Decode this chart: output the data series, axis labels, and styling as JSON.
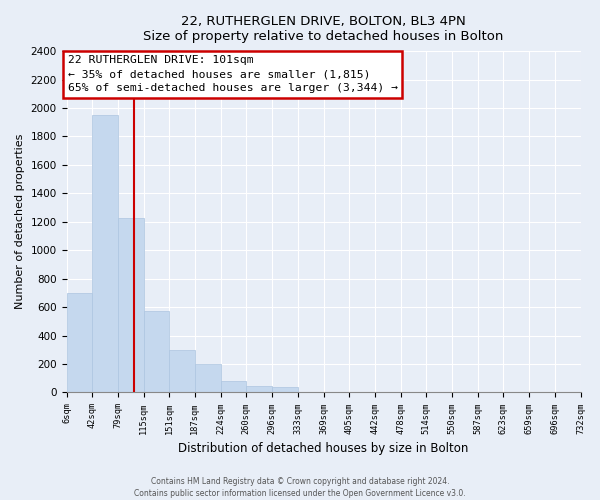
{
  "title": "22, RUTHERGLEN DRIVE, BOLTON, BL3 4PN",
  "subtitle": "Size of property relative to detached houses in Bolton",
  "xlabel": "Distribution of detached houses by size in Bolton",
  "ylabel": "Number of detached properties",
  "bar_color": "#c5d8ee",
  "bar_edge_color": "#adc5e0",
  "bins": [
    6,
    42,
    79,
    115,
    151,
    187,
    224,
    260,
    296,
    333,
    369,
    405,
    442,
    478,
    514,
    550,
    587,
    623,
    659,
    696,
    732
  ],
  "bin_labels": [
    "6sqm",
    "42sqm",
    "79sqm",
    "115sqm",
    "151sqm",
    "187sqm",
    "224sqm",
    "260sqm",
    "296sqm",
    "333sqm",
    "369sqm",
    "405sqm",
    "442sqm",
    "478sqm",
    "514sqm",
    "550sqm",
    "587sqm",
    "623sqm",
    "659sqm",
    "696sqm",
    "732sqm"
  ],
  "values": [
    700,
    1950,
    1230,
    575,
    300,
    200,
    80,
    45,
    35,
    5,
    5,
    5,
    5,
    0,
    0,
    0,
    0,
    0,
    0,
    0
  ],
  "ylim": [
    0,
    2400
  ],
  "yticks": [
    0,
    200,
    400,
    600,
    800,
    1000,
    1200,
    1400,
    1600,
    1800,
    2000,
    2200,
    2400
  ],
  "property_line_x": 101,
  "annotation_title": "22 RUTHERGLEN DRIVE: 101sqm",
  "annotation_line1": "← 35% of detached houses are smaller (1,815)",
  "annotation_line2": "65% of semi-detached houses are larger (3,344) →",
  "annotation_box_color": "#ffffff",
  "annotation_box_edge_color": "#cc0000",
  "vline_color": "#cc0000",
  "footer_line1": "Contains HM Land Registry data © Crown copyright and database right 2024.",
  "footer_line2": "Contains public sector information licensed under the Open Government Licence v3.0.",
  "background_color": "#e8eef7",
  "plot_background_color": "#e8eef7",
  "grid_color": "#ffffff"
}
